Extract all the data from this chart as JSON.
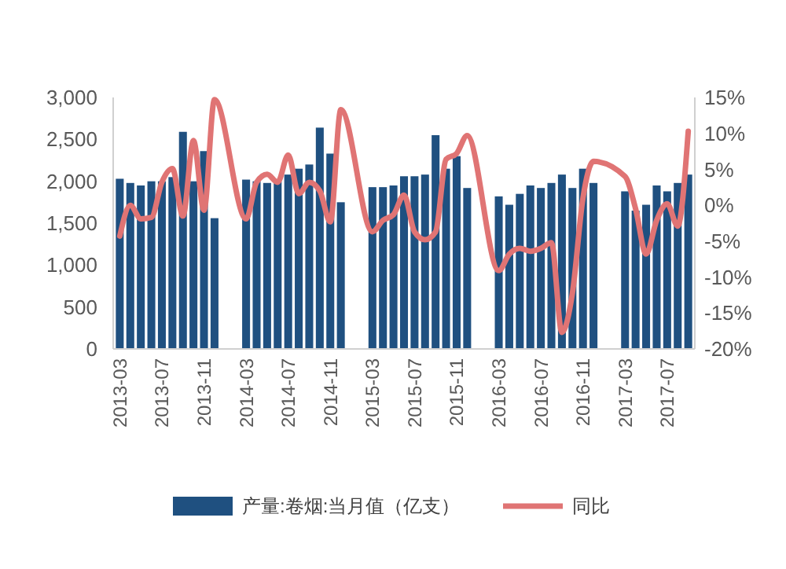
{
  "chart_data": {
    "type": "bar",
    "categories": [
      "2013-03",
      null,
      null,
      null,
      "2013-07",
      null,
      null,
      null,
      "2013-11",
      null,
      null,
      null,
      "2014-03",
      null,
      null,
      null,
      "2014-07",
      null,
      null,
      null,
      "2014-11",
      null,
      null,
      null,
      "2015-03",
      null,
      null,
      null,
      "2015-07",
      null,
      null,
      null,
      "2015-11",
      null,
      null,
      null,
      "2016-03",
      null,
      null,
      null,
      "2016-07",
      null,
      null,
      null,
      "2016-11",
      null,
      null,
      null,
      "2017-03",
      null,
      null,
      null,
      "2017-07",
      null,
      null
    ],
    "series": [
      {
        "name": "产量:卷烟:当月值（亿支）",
        "color": "#1f5080",
        "values": [
          2030,
          1980,
          1950,
          2000,
          2000,
          2050,
          2590,
          2000,
          2360,
          1560,
          null,
          null,
          2020,
          2000,
          1980,
          2000,
          2080,
          2150,
          2200,
          2640,
          2330,
          1750,
          null,
          null,
          1930,
          1930,
          1950,
          2060,
          2060,
          2080,
          2550,
          2150,
          2300,
          1920,
          null,
          null,
          1820,
          1720,
          1850,
          1950,
          1920,
          1980,
          2080,
          1920,
          2150,
          1980,
          null,
          null,
          1880,
          1650,
          1720,
          1950,
          1880,
          1980,
          2080
        ]
      },
      {
        "name": "同比",
        "type": "line",
        "axis": "y2",
        "color": "#e07474",
        "values": [
          -4.3,
          0,
          -1.9,
          -1.7,
          3.2,
          5.1,
          -1.5,
          9,
          -0.7,
          14.7,
          null,
          null,
          -1.9,
          3.2,
          4.3,
          3.2,
          7,
          1.6,
          3.2,
          2,
          -2.3,
          13.3,
          null,
          null,
          -3.7,
          -2.1,
          -1.3,
          1.4,
          -3.7,
          -4.8,
          -3.7,
          6.4,
          7.2,
          9.7,
          null,
          null,
          -9.1,
          -6.8,
          -6,
          -6.4,
          -6,
          -5.2,
          -17.7,
          -12.2,
          1,
          6.1,
          null,
          null,
          4,
          -0.5,
          -6.8,
          -2.1,
          0.2,
          -2.9,
          10.3
        ]
      }
    ],
    "ylim": [
      0,
      3000
    ],
    "yticks": [
      {
        "value": 0,
        "label": "0"
      },
      {
        "value": 500,
        "label": "500"
      },
      {
        "value": 1000,
        "label": "1,000"
      },
      {
        "value": 1500,
        "label": "1,500"
      },
      {
        "value": 2000,
        "label": "2,000"
      },
      {
        "value": 2500,
        "label": "2,500"
      },
      {
        "value": 3000,
        "label": "3,000"
      }
    ],
    "y2lim": [
      -20,
      15
    ],
    "y2ticks": [
      {
        "value": -20,
        "label": "-20%"
      },
      {
        "value": -15,
        "label": "-15%"
      },
      {
        "value": -10,
        "label": "-10%"
      },
      {
        "value": -5,
        "label": "-5%"
      },
      {
        "value": 0,
        "label": "0%"
      },
      {
        "value": 5,
        "label": "5%"
      },
      {
        "value": 10,
        "label": "10%"
      },
      {
        "value": 15,
        "label": "15%"
      }
    ],
    "grid": false,
    "legend": "bottom"
  }
}
